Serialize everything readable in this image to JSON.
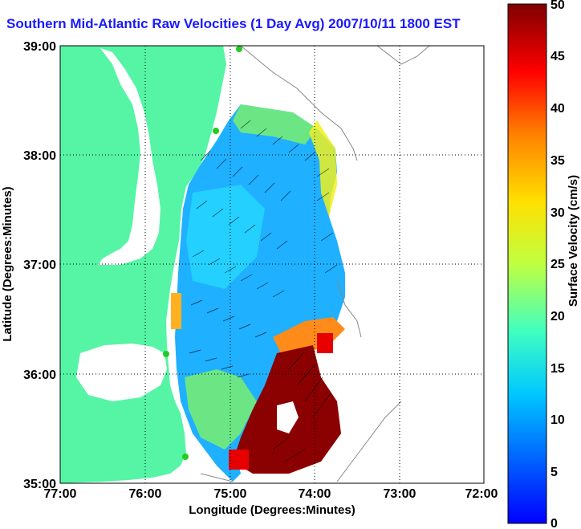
{
  "title": "Southern Mid-Atlantic Raw Velocities (1 Day Avg) 2007/10/11 1800 EST",
  "map": {
    "xlabel": "Longitude (Degrees:Minutes)",
    "ylabel": "Latitude (Degrees:Minutes)",
    "x_ticks": [
      "77:00",
      "76:00",
      "75:00",
      "74:00",
      "73:00",
      "72:00"
    ],
    "y_ticks": [
      "39:00",
      "38:00",
      "37:00",
      "36:00",
      "35:00"
    ],
    "xlim": [
      -77,
      -72
    ],
    "ylim": [
      35,
      39
    ],
    "grid": "dotted"
  },
  "colorbar": {
    "label": "Surface Velocity (cm/s)",
    "ticks": [
      "50",
      "45",
      "40",
      "35",
      "30",
      "25",
      "20",
      "15",
      "10",
      "5",
      "0"
    ],
    "range": [
      0,
      50
    ],
    "colormap": "jet"
  },
  "colors": {
    "land": "#55f5a5",
    "title": "#1a1aff",
    "station_marker": "#22cc22"
  }
}
